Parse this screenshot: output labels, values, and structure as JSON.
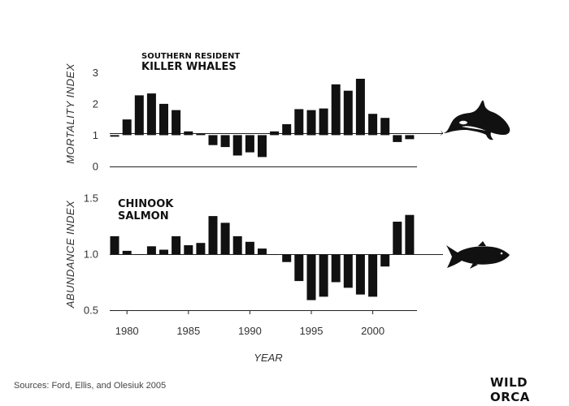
{
  "chart_data": [
    {
      "type": "bar",
      "title_line1": "SOUTHERN RESIDENT",
      "title_line2": "KILLER WHALES",
      "ylabel": "MORTALITY INDEX",
      "xlabel": "",
      "baseline": 1,
      "ylim": [
        0,
        3.5
      ],
      "yticks": [
        "0",
        "1",
        "2",
        "3"
      ],
      "x": [
        1979,
        1980,
        1981,
        1982,
        1983,
        1984,
        1985,
        1986,
        1987,
        1988,
        1989,
        1990,
        1991,
        1992,
        1993,
        1994,
        1995,
        1996,
        1997,
        1998,
        1999,
        2000,
        2001,
        2002,
        2003
      ],
      "values": [
        0.95,
        1.5,
        2.27,
        2.33,
        2.0,
        1.8,
        1.12,
        1.05,
        0.68,
        0.62,
        0.35,
        0.45,
        0.3,
        1.12,
        1.35,
        1.83,
        1.8,
        1.85,
        2.62,
        2.42,
        2.8,
        1.68,
        1.55,
        0.78,
        0.87
      ],
      "icon": "orca-icon"
    },
    {
      "type": "bar",
      "title_line1": "CHINOOK",
      "title_line2": "SALMON",
      "ylabel": "ABUNDANCE INDEX",
      "xlabel": "YEAR",
      "baseline": 1.0,
      "ylim": [
        0.5,
        1.5
      ],
      "yticks": [
        "0.5",
        "1.0",
        "1.5"
      ],
      "xticks": [
        "1980",
        "1985",
        "1990",
        "1995",
        "2000"
      ],
      "x": [
        1979,
        1980,
        1981,
        1982,
        1983,
        1984,
        1985,
        1986,
        1987,
        1988,
        1989,
        1990,
        1991,
        1992,
        1993,
        1994,
        1995,
        1996,
        1997,
        1998,
        1999,
        2000,
        2001,
        2002,
        2003
      ],
      "values": [
        1.16,
        1.03,
        1.0,
        1.07,
        1.04,
        1.16,
        1.08,
        1.1,
        1.34,
        1.28,
        1.16,
        1.11,
        1.05,
        1.0,
        0.93,
        0.76,
        0.59,
        0.62,
        0.75,
        0.7,
        0.64,
        0.62,
        0.89,
        1.29,
        1.35
      ],
      "icon": "salmon-icon"
    }
  ],
  "footer": {
    "source": "Sources: Ford, Ellis, and Olesiuk 2005",
    "brand": "WILD ORCA"
  }
}
